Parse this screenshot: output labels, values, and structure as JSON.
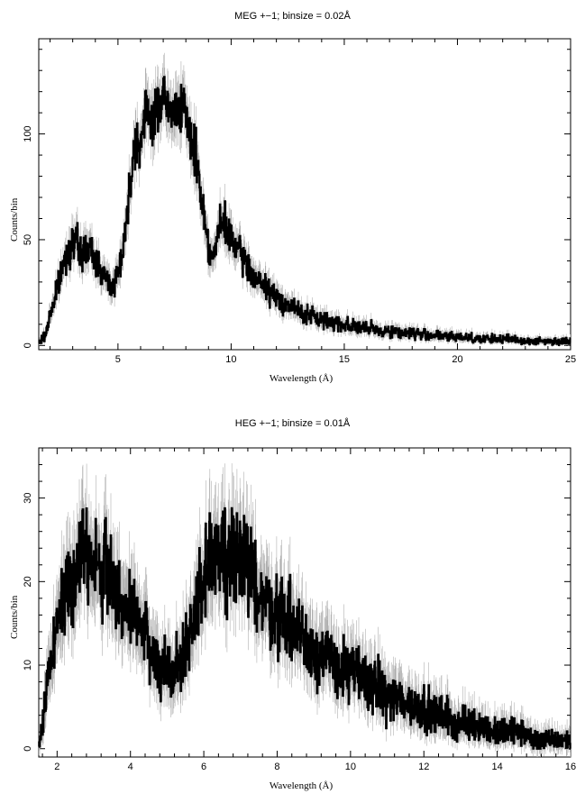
{
  "chart_data": [
    {
      "type": "line",
      "title": "MEG +−1; binsize = 0.02Å",
      "xlabel": "Wavelength (Å)",
      "ylabel": "Counts/bin",
      "xlim": [
        1.5,
        25
      ],
      "ylim": [
        -2,
        145
      ],
      "xticks": [
        5,
        10,
        15,
        20,
        25
      ],
      "yticks": [
        0,
        50,
        100
      ],
      "grid": false,
      "series": [
        {
          "x": [
            1.5,
            1.8,
            2.0,
            2.2,
            2.4,
            2.6,
            2.8,
            3.0,
            3.2,
            3.4,
            3.6,
            3.8,
            4.0,
            4.2,
            4.4,
            4.6,
            4.8,
            5.0,
            5.2,
            5.4,
            5.6,
            5.8,
            6.0,
            6.2,
            6.4,
            6.6,
            6.8,
            7.0,
            7.2,
            7.4,
            7.6,
            7.8,
            8.0,
            8.2,
            8.4,
            8.6,
            8.8,
            9.0,
            9.2,
            9.4,
            9.6,
            9.8,
            10.0,
            10.3,
            10.6,
            10.9,
            11.2,
            11.5,
            11.8,
            12.1,
            12.4,
            12.7,
            13.0,
            13.5,
            14.0,
            14.5,
            15.0,
            15.5,
            16.0,
            16.5,
            17.0,
            17.5,
            18.0,
            18.5,
            19.0,
            19.5,
            20.0,
            20.5,
            21.0,
            21.5,
            22.0,
            22.5,
            23.0,
            23.5,
            24.0,
            24.5,
            25.0
          ],
          "y": [
            1,
            5,
            15,
            22,
            30,
            38,
            45,
            50,
            48,
            42,
            46,
            44,
            40,
            38,
            32,
            30,
            28,
            35,
            45,
            60,
            85,
            100,
            95,
            108,
            112,
            105,
            115,
            120,
            110,
            108,
            112,
            118,
            105,
            98,
            92,
            78,
            62,
            48,
            40,
            52,
            58,
            55,
            50,
            45,
            40,
            35,
            30,
            28,
            24,
            22,
            20,
            18,
            16,
            14,
            12,
            11,
            10,
            9,
            8,
            7,
            7,
            6,
            6,
            5,
            5,
            4,
            4,
            4,
            3,
            3,
            3,
            3,
            2,
            2,
            2,
            2,
            2
          ]
        }
      ]
    },
    {
      "type": "line",
      "title": "HEG +−1; binsize = 0.01Å",
      "xlabel": "Wavelength (Å)",
      "ylabel": "Counts/bin",
      "xlim": [
        1.5,
        16
      ],
      "ylim": [
        -1,
        36
      ],
      "xticks": [
        2,
        4,
        6,
        8,
        10,
        12,
        14,
        16
      ],
      "yticks": [
        0,
        10,
        20,
        30
      ],
      "grid": false,
      "series": [
        {
          "x": [
            1.5,
            1.6,
            1.7,
            1.8,
            1.9,
            2.0,
            2.2,
            2.4,
            2.6,
            2.8,
            3.0,
            3.2,
            3.4,
            3.6,
            3.8,
            4.0,
            4.2,
            4.4,
            4.6,
            4.8,
            5.0,
            5.2,
            5.4,
            5.6,
            5.8,
            6.0,
            6.2,
            6.4,
            6.6,
            6.8,
            7.0,
            7.2,
            7.4,
            7.6,
            7.8,
            8.0,
            8.2,
            8.4,
            8.6,
            8.8,
            9.0,
            9.3,
            9.6,
            9.9,
            10.2,
            10.5,
            10.8,
            11.1,
            11.4,
            11.7,
            12.0,
            12.3,
            12.6,
            12.9,
            13.2,
            13.5,
            13.8,
            14.1,
            14.4,
            14.7,
            15.0,
            15.3,
            15.6,
            16.0
          ],
          "y": [
            0,
            3,
            7,
            10,
            13,
            15,
            18,
            21,
            23,
            24,
            22,
            21,
            22,
            19,
            17,
            16,
            15,
            14,
            11,
            10,
            10,
            9,
            11,
            13,
            17,
            21,
            24,
            23,
            23,
            25,
            22,
            21,
            20,
            18,
            17,
            16,
            16,
            15,
            14,
            13,
            12,
            11,
            10,
            9,
            9,
            8,
            7,
            6,
            6,
            5,
            5,
            4,
            4,
            3,
            3,
            3,
            2,
            2,
            2,
            2,
            1,
            1,
            1,
            1
          ]
        }
      ]
    }
  ]
}
